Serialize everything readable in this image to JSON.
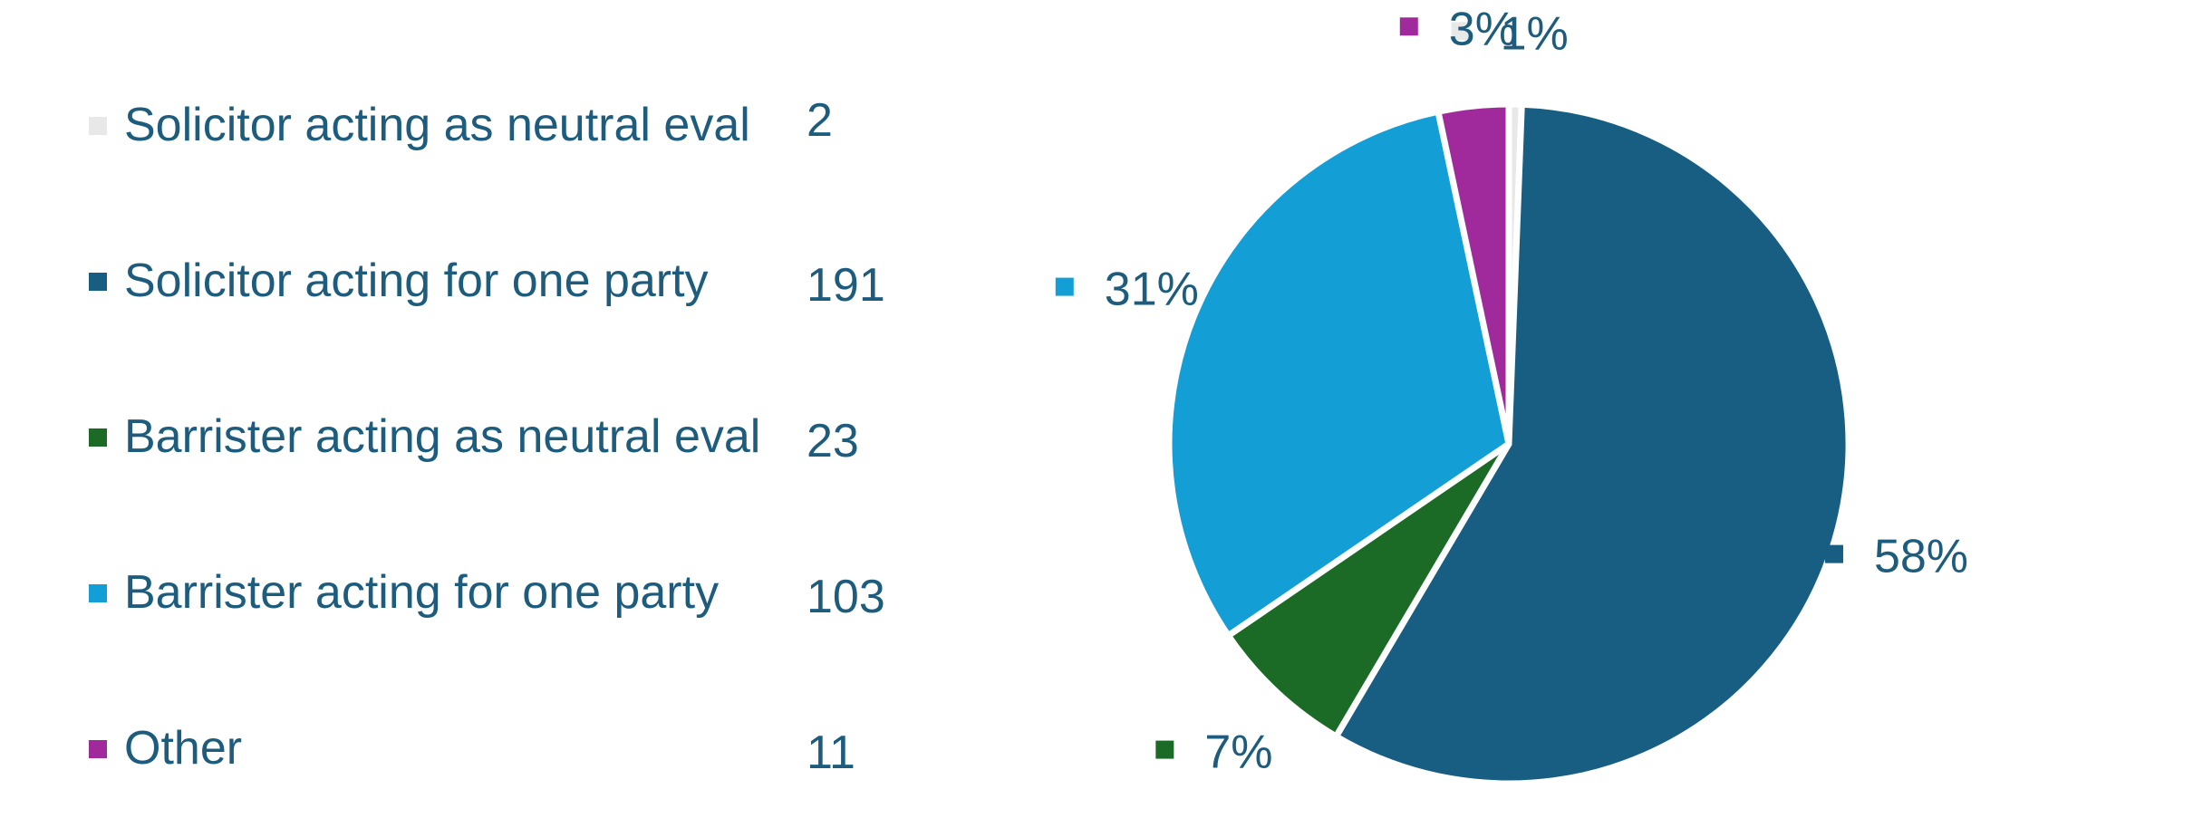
{
  "chart_data": {
    "type": "pie",
    "categories": [
      "Solicitor acting as neutral eval",
      "Solicitor acting for one party",
      "Barrister acting as neutral eval",
      "Barrister acting for one party",
      "Other"
    ],
    "values": [
      2,
      191,
      23,
      103,
      11
    ],
    "percent_labels": [
      "1%",
      "58%",
      "7%",
      "31%",
      "3%"
    ],
    "colors": [
      "#e8e8e8",
      "#185e82",
      "#1b6b27",
      "#139fd6",
      "#a0299b"
    ],
    "text_color": "#1d5c7d",
    "legend_position": "left",
    "legend_shows_values": true,
    "start_angle_deg": 0,
    "direction": "clockwise",
    "exploded_slices": true
  }
}
